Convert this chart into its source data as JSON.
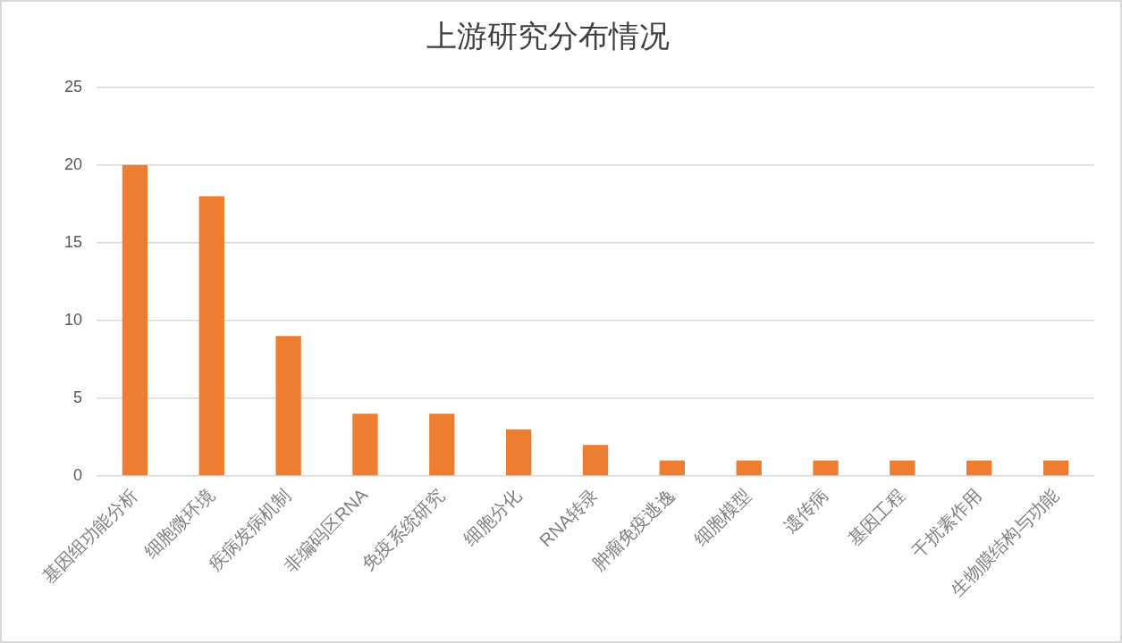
{
  "chart_data": {
    "type": "bar",
    "title": "上游研究分布情况",
    "categories": [
      "基因组功能分析",
      "细胞微环境",
      "疾病发病机制",
      "非编码区RNA",
      "免疫系统研究",
      "细胞分化",
      "RNA转录",
      "肿瘤免疫逃逸",
      "细胞模型",
      "遗传病",
      "基因工程",
      "干扰素作用",
      "生物膜结构与功能"
    ],
    "values": [
      20,
      18,
      9,
      4,
      4,
      3,
      2,
      1,
      1,
      1,
      1,
      1,
      1
    ],
    "color": "#ed7d31",
    "ylim": [
      0,
      25
    ],
    "yticks": [
      0,
      5,
      10,
      15,
      20,
      25
    ],
    "grid": "y"
  }
}
